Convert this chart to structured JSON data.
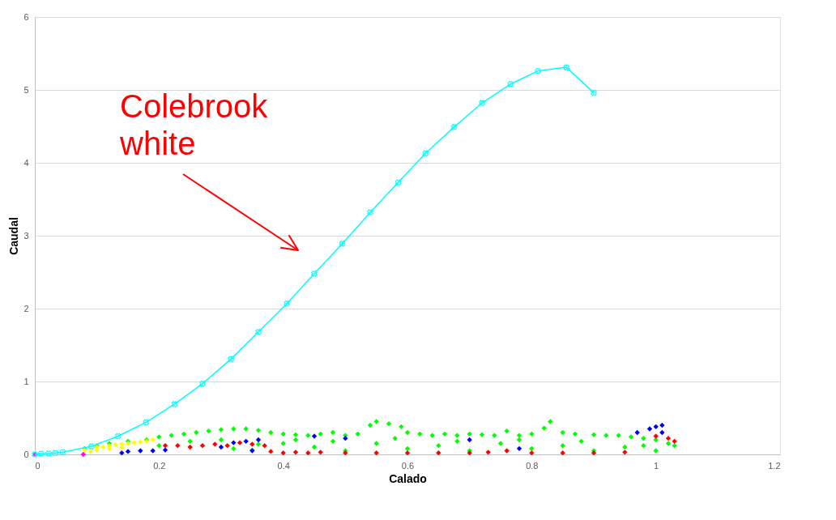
{
  "chart_data": {
    "type": "scatter",
    "xlabel": "Calado",
    "ylabel": "Caudal",
    "xlim": [
      0,
      1.2
    ],
    "xticks": [
      0,
      0.2,
      0.4,
      0.6,
      0.8,
      1,
      1.2
    ],
    "ylim": [
      0,
      6
    ],
    "yticks": [
      0,
      1,
      2,
      3,
      4,
      5,
      6
    ],
    "grid": "y",
    "legend": false,
    "marker": "diamond",
    "annotations": [
      "Colebrook white"
    ],
    "series": [
      {
        "color": "#00ff00",
        "x": [
          0.08,
          0.1,
          0.12,
          0.15,
          0.18,
          0.2,
          0.22,
          0.24,
          0.26,
          0.28,
          0.3,
          0.32,
          0.34,
          0.36,
          0.38,
          0.4,
          0.42,
          0.44,
          0.46,
          0.48,
          0.5,
          0.52,
          0.54,
          0.55,
          0.57,
          0.59,
          0.6,
          0.62,
          0.64,
          0.66,
          0.68,
          0.7,
          0.72,
          0.74,
          0.76,
          0.78,
          0.8,
          0.82,
          0.83,
          0.85,
          0.87,
          0.9,
          0.92,
          0.94,
          0.96,
          0.98,
          1.0,
          1.02,
          1.03,
          0.2,
          0.25,
          0.3,
          0.35,
          0.4,
          0.45,
          0.5,
          0.55,
          0.6,
          0.65,
          0.7,
          0.75,
          0.8,
          0.85,
          0.9,
          0.95,
          1.0,
          0.32,
          0.36,
          0.42,
          0.48,
          0.58,
          0.68,
          0.78,
          0.88,
          0.98
        ],
        "values": [
          0.08,
          0.12,
          0.15,
          0.18,
          0.2,
          0.24,
          0.26,
          0.28,
          0.3,
          0.32,
          0.34,
          0.35,
          0.35,
          0.33,
          0.3,
          0.28,
          0.27,
          0.26,
          0.28,
          0.3,
          0.26,
          0.28,
          0.4,
          0.45,
          0.42,
          0.38,
          0.3,
          0.28,
          0.26,
          0.28,
          0.26,
          0.28,
          0.27,
          0.26,
          0.32,
          0.26,
          0.28,
          0.36,
          0.45,
          0.3,
          0.28,
          0.27,
          0.26,
          0.26,
          0.24,
          0.22,
          0.2,
          0.15,
          0.12,
          0.12,
          0.18,
          0.2,
          0.06,
          0.15,
          0.1,
          0.05,
          0.15,
          0.08,
          0.12,
          0.05,
          0.15,
          0.08,
          0.12,
          0.05,
          0.1,
          0.05,
          0.08,
          0.14,
          0.2,
          0.18,
          0.22,
          0.18,
          0.2,
          0.18,
          0.12
        ]
      },
      {
        "color": "#ff0000",
        "x": [
          0.21,
          0.23,
          0.25,
          0.27,
          0.29,
          0.31,
          0.33,
          0.35,
          0.37,
          0.38,
          0.4,
          0.42,
          0.44,
          0.46,
          0.5,
          0.55,
          0.6,
          0.65,
          0.7,
          0.73,
          0.76,
          0.8,
          0.85,
          0.9,
          0.95,
          1.0,
          1.02,
          1.03
        ],
        "values": [
          0.12,
          0.12,
          0.1,
          0.12,
          0.14,
          0.12,
          0.16,
          0.14,
          0.12,
          0.04,
          0.02,
          0.03,
          0.02,
          0.03,
          0.02,
          0.02,
          0.02,
          0.02,
          0.02,
          0.03,
          0.05,
          0.02,
          0.02,
          0.02,
          0.03,
          0.25,
          0.22,
          0.18
        ]
      },
      {
        "color": "#0000ff",
        "x": [
          0.14,
          0.15,
          0.17,
          0.19,
          0.21,
          0.3,
          0.32,
          0.34,
          0.36,
          0.35,
          0.45,
          0.5,
          0.7,
          0.78,
          0.97,
          0.99,
          1.0,
          1.01,
          1.01
        ],
        "values": [
          0.02,
          0.04,
          0.05,
          0.05,
          0.06,
          0.1,
          0.16,
          0.18,
          0.2,
          0.05,
          0.25,
          0.22,
          0.2,
          0.08,
          0.3,
          0.35,
          0.38,
          0.4,
          0.3
        ]
      },
      {
        "color": "#ffff00",
        "x": [
          0.08,
          0.09,
          0.1,
          0.11,
          0.12,
          0.13,
          0.14,
          0.15,
          0.16,
          0.17,
          0.18,
          0.19,
          0.1,
          0.12,
          0.14
        ],
        "values": [
          0.06,
          0.04,
          0.1,
          0.1,
          0.12,
          0.13,
          0.14,
          0.15,
          0.16,
          0.17,
          0.18,
          0.2,
          0.06,
          0.08,
          0.1
        ]
      },
      {
        "color": "#ff00ff",
        "x": [
          0,
          0.078
        ],
        "values": [
          0,
          0
        ]
      },
      {
        "type": "line",
        "marker": "cross",
        "color": "#00ffff",
        "x": [
          0,
          0.01,
          0.022,
          0.033,
          0.045,
          0.091,
          0.134,
          0.179,
          0.225,
          0.27,
          0.316,
          0.36,
          0.406,
          0.45,
          0.495,
          0.54,
          0.585,
          0.629,
          0.675,
          0.72,
          0.766,
          0.81,
          0.856,
          0.9
        ],
        "values": [
          0,
          0.01,
          0.01,
          0.02,
          0.03,
          0.11,
          0.25,
          0.44,
          0.69,
          0.97,
          1.31,
          1.68,
          2.07,
          2.48,
          2.89,
          3.32,
          3.73,
          4.13,
          4.49,
          4.82,
          5.08,
          5.26,
          5.31,
          4.96
        ]
      }
    ]
  }
}
